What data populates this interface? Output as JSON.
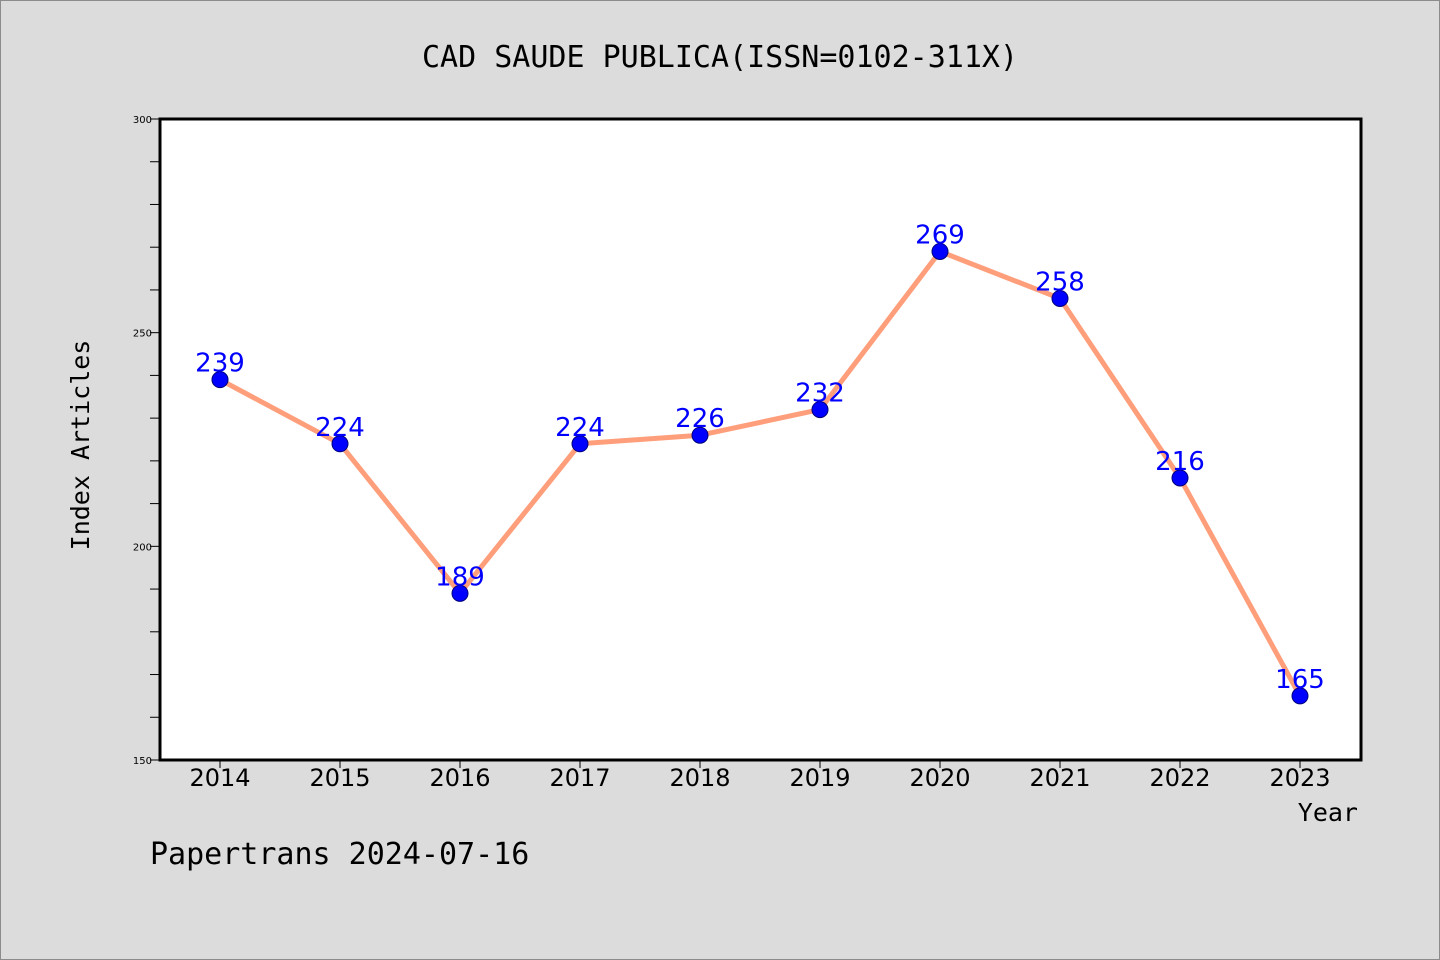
{
  "chart_data": {
    "type": "line",
    "title": "CAD SAUDE PUBLICA(ISSN=0102-311X)",
    "xlabel": "Year",
    "ylabel": "Index Articles",
    "categories": [
      "2014",
      "2015",
      "2016",
      "2017",
      "2018",
      "2019",
      "2020",
      "2021",
      "2022",
      "2023"
    ],
    "series": [
      {
        "values": [
          239,
          224,
          189,
          224,
          226,
          232,
          269,
          258,
          216,
          165
        ]
      }
    ],
    "ylim": [
      150,
      300
    ],
    "yticks": [
      150,
      200,
      250,
      300
    ],
    "data_labels": true,
    "grid": false,
    "colors": {
      "line": "#ff9e7a",
      "marker": "#0000ff",
      "label": "#0000ff",
      "background": "#dcdcdc",
      "plot_background": "#ffffff"
    }
  },
  "footer": {
    "text": "Papertrans 2024-07-16"
  }
}
